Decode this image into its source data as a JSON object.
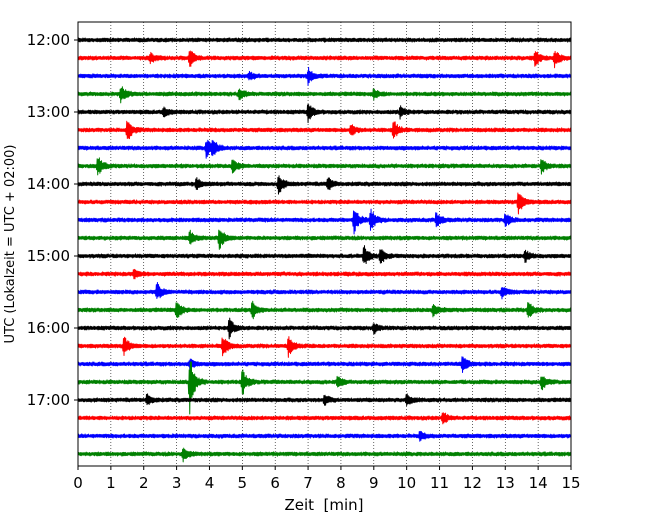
{
  "chart_data": {
    "type": "line",
    "title": "",
    "xlabel": "Zeit  [min]",
    "ylabel": "UTC (Lokalzeit = UTC + 02:00)",
    "xlim": [
      0,
      15
    ],
    "xticks": [
      "0",
      "1",
      "2",
      "3",
      "4",
      "5",
      "6",
      "7",
      "8",
      "9",
      "10",
      "11",
      "12",
      "13",
      "14",
      "15"
    ],
    "yticks": [
      "12:00",
      "13:00",
      "14:00",
      "15:00",
      "16:00",
      "17:00"
    ],
    "grid": "vertical dotted",
    "trace_interval_minutes": 15,
    "start_time": "12:00",
    "trace_colors": [
      "#000000",
      "#ff0000",
      "#0000ff",
      "#008000"
    ],
    "traces": [
      {
        "time": "12:00",
        "color": "#000000",
        "events": []
      },
      {
        "time": "12:15",
        "color": "#ff0000",
        "events": [
          {
            "t": 3.4,
            "amp": 9
          },
          {
            "t": 2.2,
            "amp": 5
          },
          {
            "t": 13.9,
            "amp": 8
          },
          {
            "t": 14.5,
            "amp": 9
          }
        ]
      },
      {
        "time": "12:30",
        "color": "#0000ff",
        "events": [
          {
            "t": 7.0,
            "amp": 8
          },
          {
            "t": 5.2,
            "amp": 4
          }
        ]
      },
      {
        "time": "12:45",
        "color": "#008000",
        "events": [
          {
            "t": 1.3,
            "amp": 9
          },
          {
            "t": 4.9,
            "amp": 6
          },
          {
            "t": 9.0,
            "amp": 5
          }
        ]
      },
      {
        "time": "13:00",
        "color": "#000000",
        "events": [
          {
            "t": 7.0,
            "amp": 9
          },
          {
            "t": 9.8,
            "amp": 6
          },
          {
            "t": 2.6,
            "amp": 5
          }
        ]
      },
      {
        "time": "13:15",
        "color": "#ff0000",
        "events": [
          {
            "t": 1.5,
            "amp": 12
          },
          {
            "t": 9.6,
            "amp": 10
          },
          {
            "t": 8.3,
            "amp": 6
          }
        ]
      },
      {
        "time": "13:30",
        "color": "#0000ff",
        "events": [
          {
            "t": 3.9,
            "amp": 10
          },
          {
            "t": 4.1,
            "amp": 8
          }
        ]
      },
      {
        "time": "13:45",
        "color": "#008000",
        "events": [
          {
            "t": 0.6,
            "amp": 10
          },
          {
            "t": 4.7,
            "amp": 8
          },
          {
            "t": 14.1,
            "amp": 8
          }
        ]
      },
      {
        "time": "14:00",
        "color": "#000000",
        "events": [
          {
            "t": 6.1,
            "amp": 10
          },
          {
            "t": 7.6,
            "amp": 7
          },
          {
            "t": 3.6,
            "amp": 6
          }
        ]
      },
      {
        "time": "14:15",
        "color": "#ff0000",
        "events": [
          {
            "t": 13.4,
            "amp": 12
          }
        ]
      },
      {
        "time": "14:30",
        "color": "#0000ff",
        "events": [
          {
            "t": 8.4,
            "amp": 13
          },
          {
            "t": 8.9,
            "amp": 12
          },
          {
            "t": 10.9,
            "amp": 8
          },
          {
            "t": 13.0,
            "amp": 7
          }
        ]
      },
      {
        "time": "14:45",
        "color": "#008000",
        "events": [
          {
            "t": 4.3,
            "amp": 12
          },
          {
            "t": 3.4,
            "amp": 7
          }
        ]
      },
      {
        "time": "15:00",
        "color": "#000000",
        "events": [
          {
            "t": 8.7,
            "amp": 10
          },
          {
            "t": 9.2,
            "amp": 8
          },
          {
            "t": 13.6,
            "amp": 6
          }
        ]
      },
      {
        "time": "15:15",
        "color": "#ff0000",
        "events": [
          {
            "t": 1.7,
            "amp": 5
          }
        ]
      },
      {
        "time": "15:30",
        "color": "#0000ff",
        "events": [
          {
            "t": 2.4,
            "amp": 9
          },
          {
            "t": 12.9,
            "amp": 6
          }
        ]
      },
      {
        "time": "15:45",
        "color": "#008000",
        "events": [
          {
            "t": 3.0,
            "amp": 10
          },
          {
            "t": 5.3,
            "amp": 9
          },
          {
            "t": 13.7,
            "amp": 9
          },
          {
            "t": 10.8,
            "amp": 6
          }
        ]
      },
      {
        "time": "16:00",
        "color": "#000000",
        "events": [
          {
            "t": 4.6,
            "amp": 10
          },
          {
            "t": 9.0,
            "amp": 5
          }
        ]
      },
      {
        "time": "16:15",
        "color": "#ff0000",
        "events": [
          {
            "t": 1.4,
            "amp": 10
          },
          {
            "t": 4.4,
            "amp": 11
          },
          {
            "t": 6.4,
            "amp": 10
          }
        ]
      },
      {
        "time": "16:30",
        "color": "#0000ff",
        "events": [
          {
            "t": 11.7,
            "amp": 9
          },
          {
            "t": 3.4,
            "amp": 5
          }
        ]
      },
      {
        "time": "16:45",
        "color": "#008000",
        "events": [
          {
            "t": 3.4,
            "amp": 30
          },
          {
            "t": 5.0,
            "amp": 13
          },
          {
            "t": 7.9,
            "amp": 6
          },
          {
            "t": 14.1,
            "amp": 8
          }
        ]
      },
      {
        "time": "17:00",
        "color": "#000000",
        "events": [
          {
            "t": 2.1,
            "amp": 6
          },
          {
            "t": 10.0,
            "amp": 6
          },
          {
            "t": 7.5,
            "amp": 5
          }
        ]
      },
      {
        "time": "17:15",
        "color": "#ff0000",
        "events": [
          {
            "t": 11.1,
            "amp": 6
          }
        ]
      },
      {
        "time": "17:30",
        "color": "#0000ff",
        "events": [
          {
            "t": 10.4,
            "amp": 4
          }
        ]
      },
      {
        "time": "17:45",
        "color": "#008000",
        "events": [
          {
            "t": 3.2,
            "amp": 7
          }
        ]
      }
    ]
  }
}
